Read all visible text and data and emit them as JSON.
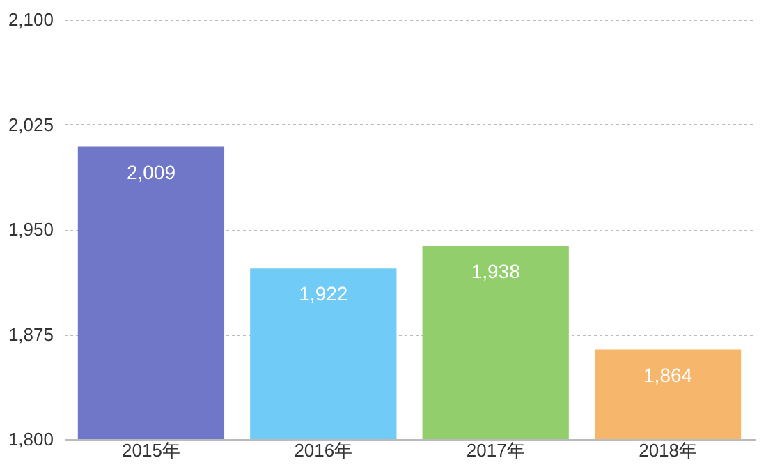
{
  "chart_data": {
    "type": "bar",
    "categories": [
      "2015年",
      "2016年",
      "2017年",
      "2018年"
    ],
    "values": [
      2009,
      1922,
      1938,
      1864
    ],
    "colors": [
      "#7077c9",
      "#70cbf7",
      "#92cf6c",
      "#f6b76c"
    ],
    "ylim": [
      1800,
      2100
    ],
    "yticks": [
      {
        "value": 1800,
        "label": "1,800"
      },
      {
        "value": 1875,
        "label": "1,875"
      },
      {
        "value": 1950,
        "label": "1,950"
      },
      {
        "value": 2025,
        "label": "2,025"
      },
      {
        "value": 2100,
        "label": "2,100"
      }
    ],
    "value_labels": [
      "2,009",
      "1,922",
      "1,938",
      "1,864"
    ],
    "grid": "y"
  }
}
